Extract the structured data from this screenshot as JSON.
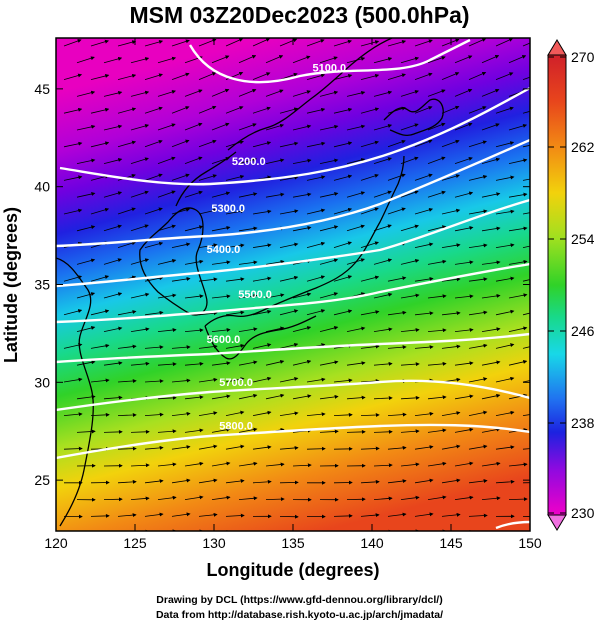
{
  "title": "MSM 03Z20Dec2023 (500.0hPa)",
  "map": {
    "projection": "equirectangular",
    "lon_range": [
      120,
      150
    ],
    "lat_range": [
      22.4,
      47.6
    ],
    "xlabel": "Longitude (degrees)",
    "ylabel": "Latitude  (degrees)",
    "x_ticks": [
      "120",
      "125",
      "130",
      "135",
      "140",
      "145",
      "150"
    ],
    "y_ticks": [
      "25",
      "30",
      "35",
      "40",
      "45"
    ],
    "field": "temperature (shaded) with geopotential height contours and wind streamlines",
    "contours": [
      {
        "label": "5100.0",
        "lon": 137.3,
        "lat": 45.9
      },
      {
        "label": "5200.0",
        "lon": 132.2,
        "lat": 41.1
      },
      {
        "label": "5300.0",
        "lon": 130.9,
        "lat": 38.7
      },
      {
        "label": "5400.0",
        "lon": 130.6,
        "lat": 36.6
      },
      {
        "label": "5500.0",
        "lon": 132.6,
        "lat": 34.3
      },
      {
        "label": "5600.0",
        "lon": 130.6,
        "lat": 32.0
      },
      {
        "label": "5700.0",
        "lon": 131.4,
        "lat": 29.8
      },
      {
        "label": "5800.0",
        "lon": 131.4,
        "lat": 27.6
      }
    ]
  },
  "colorbar": {
    "min": 230,
    "max": 270,
    "labels": [
      "270",
      "262",
      "254",
      "246",
      "238",
      "230"
    ],
    "colors": [
      "#b0003a",
      "#e8351c",
      "#f07a14",
      "#f7c80a",
      "#b8e820",
      "#2ed22a",
      "#18d98a",
      "#14e0e6",
      "#2090f0",
      "#1c22e0",
      "#8e0ae0",
      "#f000c8"
    ]
  },
  "credits": {
    "line1": "Drawing by DCL (https://www.gfd-dennou.org/library/dcl/)",
    "line2": "Data from http://database.rish.kyoto-u.ac.jp/arch/jmadata/"
  }
}
